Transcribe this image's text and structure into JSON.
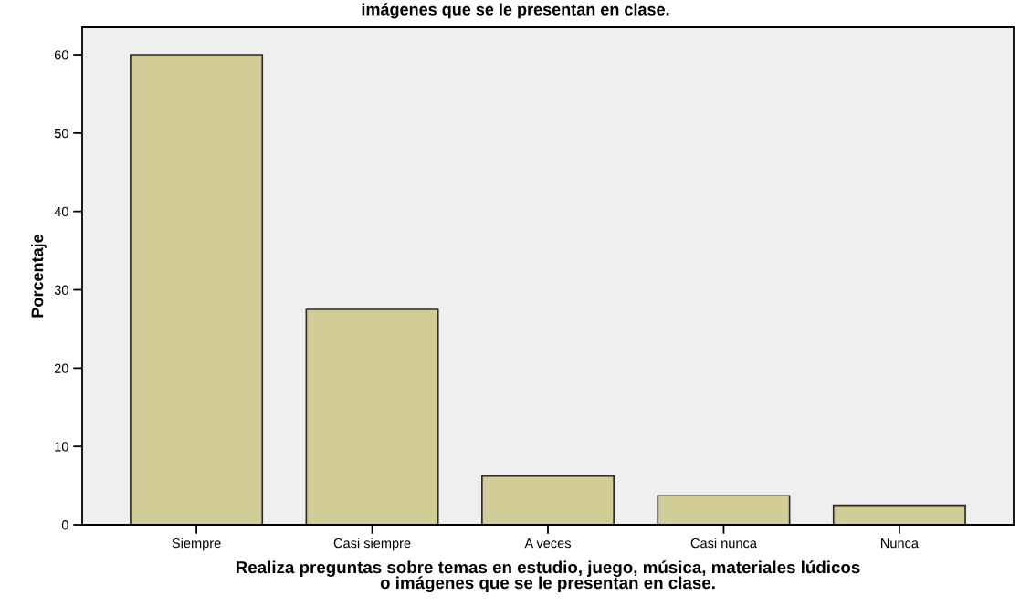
{
  "chart_data": {
    "type": "bar",
    "title": "imágenes que se le presentan en clase.",
    "xlabel": "Realiza preguntas sobre temas en estudio, juego, música, materiales lúdicos\no imágenes que se le presentan en clase.",
    "ylabel": "Porcentaje",
    "categories": [
      "Siempre",
      "Casi siempre",
      "A veces",
      "Casi nunca",
      "Nunca"
    ],
    "values": [
      60,
      27.5,
      6.2,
      3.7,
      2.5
    ],
    "color": "#d2cd96",
    "ylim": [
      0,
      63.5
    ],
    "yticks": [
      0,
      10,
      20,
      30,
      40,
      50,
      60
    ],
    "grid": false
  }
}
